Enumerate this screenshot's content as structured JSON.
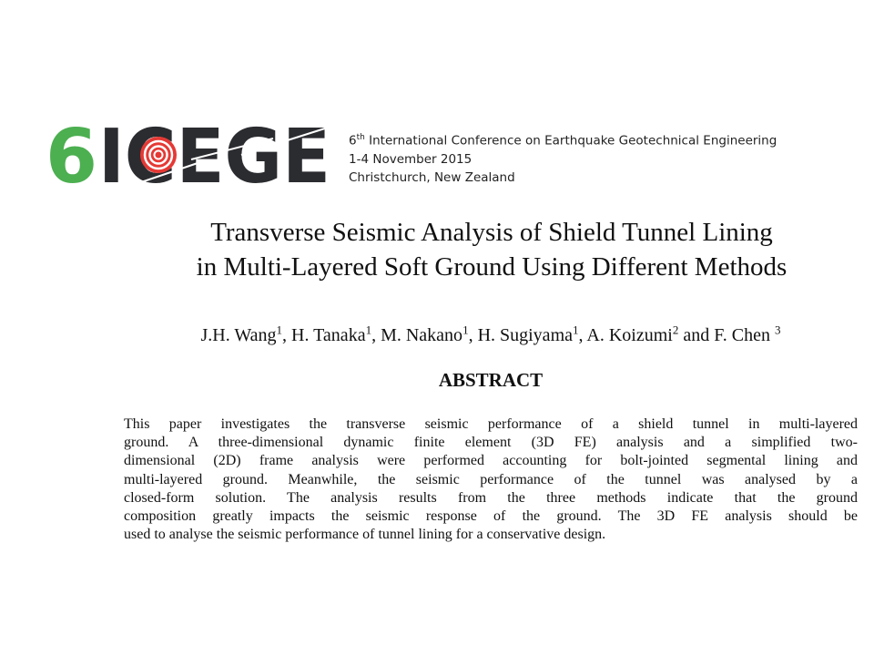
{
  "logo": {
    "text": "6ICEGE",
    "colors": {
      "six": "#4caf50",
      "letters": "#2b2c30",
      "target": "#e53935"
    }
  },
  "conference": {
    "ordinal": "6",
    "ordinal_suffix": "th",
    "name": " International Conference on Earthquake Geotechnical Engineering",
    "dates": "1-4 November 2015",
    "location": "Christchurch, New Zealand"
  },
  "title": {
    "line1": "Transverse Seismic Analysis of Shield Tunnel Lining",
    "line2": "in Multi-Layered Soft Ground Using Different Methods"
  },
  "authors": [
    {
      "name": "J.H. Wang",
      "aff": "1",
      "sep": ", "
    },
    {
      "name": "H. Tanaka",
      "aff": "1",
      "sep": ", "
    },
    {
      "name": "M. Nakano",
      "aff": "1",
      "sep": ", "
    },
    {
      "name": "H. Sugiyama",
      "aff": "1",
      "sep": ", "
    },
    {
      "name": "A. Koizumi",
      "aff": "2",
      "sep": " and "
    },
    {
      "name": "F. Chen ",
      "aff": "3",
      "sep": ""
    }
  ],
  "abstract": {
    "heading": "ABSTRACT",
    "lines": [
      "This paper investigates the transverse seismic performance of a shield tunnel in multi-layered",
      "ground. A three-dimensional dynamic finite element (3D FE) analysis and a simplified two-",
      "dimensional (2D) frame analysis were performed accounting for bolt-jointed segmental lining and",
      "multi-layered ground. Meanwhile, the seismic performance of the tunnel was analysed by a",
      "closed-form solution. The analysis results from the three methods indicate that the ground",
      "composition greatly impacts the seismic response of the ground. The 3D FE analysis should be",
      "used to analyse the seismic performance of tunnel lining for a conservative design."
    ]
  }
}
